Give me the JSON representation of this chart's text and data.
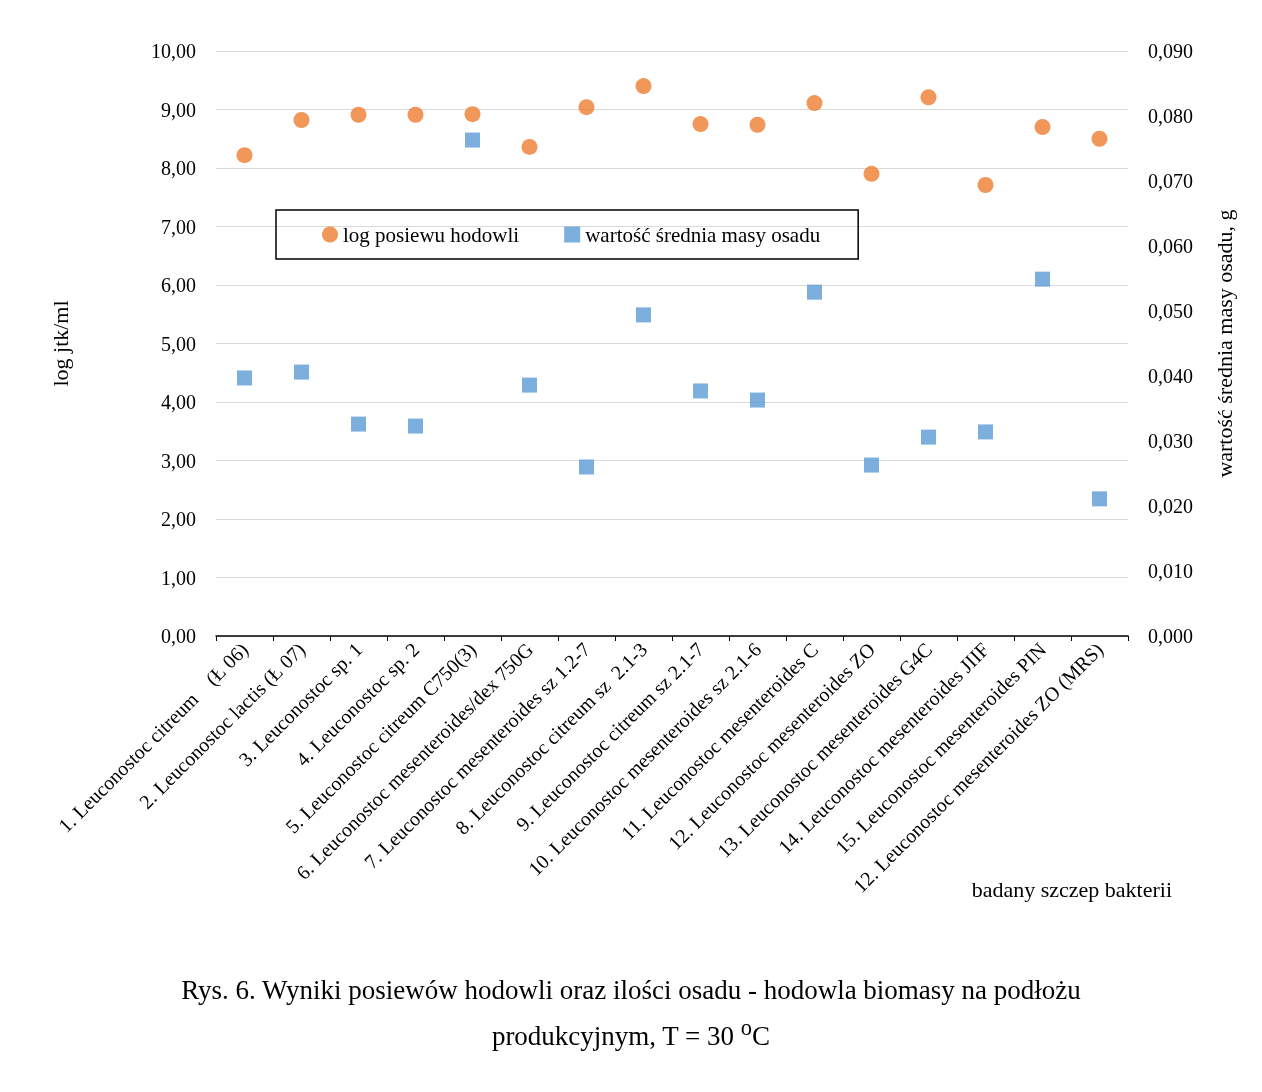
{
  "chart_data": {
    "type": "scatter",
    "title": "Rys. 6. Wyniki posiewów hodowli oraz ilości osadu - hodowla biomasy na podłożu produkcyjnym,  T = 30 $^{o}$C",
    "xlabel": "badany szczep bakterii",
    "ylabel": "log jtk/ml",
    "y2label": "wartość średnia masy osadu, g",
    "categories": [
      "1. Leuconostoc citreum    (Ł 06)",
      "2. Leuconostoc lactis (Ł 07)",
      "3. Leuconostoc sp. 1",
      "4. Leuconostoc sp. 2",
      "5. Leuconostoc citreum C750(3)",
      "6. Leuconostoc mesenteroides/dex 750G",
      "7. Leuconostoc mesenteroides sz 1.2-7",
      "8. Leuconostoc citreum sz  2.1-3",
      "9. Leuconostoc citreum sz 2.1-7",
      "10. Leuconostoc mesenteroides sz 2.1-6",
      "11. Leuconostoc mesenteroides C",
      "12. Leuconostoc mesenteroides ZO",
      "13. Leuconostoc mesenteroides G4C",
      "14. Leuconostoc mesenteroides JIIF",
      "15. Leuconostoc mesenteroides PIN",
      "12. Leuconostoc mesenteroides ZO (MRS)"
    ],
    "series": [
      {
        "name": "log posiewu hodowli",
        "color": "#ed7d31",
        "marker": "circle",
        "values": [
          8.22,
          8.82,
          8.91,
          8.91,
          8.92,
          8.36,
          9.04,
          9.4,
          8.75,
          8.74,
          9.11,
          7.9,
          9.21,
          7.71,
          8.7,
          8.5
        ]
      },
      {
        "name": "wartość średnia masy osadu",
        "color": "#5b9bd5",
        "marker": "square",
        "axis": "y2",
        "values": [
          0.0397,
          0.0406,
          0.0326,
          0.0323,
          0.0763,
          0.0386,
          0.026,
          0.0494,
          0.0377,
          0.0363,
          0.0529,
          0.0263,
          0.0306,
          0.0314,
          0.0549,
          0.0211
        ]
      }
    ],
    "ylim": [
      0,
      10
    ],
    "yticks": [
      {
        "value": 0,
        "label": "0,00"
      },
      {
        "value": 1,
        "label": "1,00"
      },
      {
        "value": 2,
        "label": "2,00"
      },
      {
        "value": 3,
        "label": "3,00"
      },
      {
        "value": 4,
        "label": "4,00"
      },
      {
        "value": 5,
        "label": "5,00"
      },
      {
        "value": 6,
        "label": "6,00"
      },
      {
        "value": 7,
        "label": "7,00"
      },
      {
        "value": 8,
        "label": "8,00"
      },
      {
        "value": 9,
        "label": "9,00"
      },
      {
        "value": 10,
        "label": "10,00"
      }
    ],
    "y2lim": [
      0,
      0.09
    ],
    "y2ticks": [
      {
        "value": 0,
        "label": "0,000"
      },
      {
        "value": 0.01,
        "label": "0,010"
      },
      {
        "value": 0.02,
        "label": "0,020"
      },
      {
        "value": 0.03,
        "label": "0,030"
      },
      {
        "value": 0.04,
        "label": "0,040"
      },
      {
        "value": 0.05,
        "label": "0,050"
      },
      {
        "value": 0.06,
        "label": "0,060"
      },
      {
        "value": 0.07,
        "label": "0,070"
      },
      {
        "value": 0.08,
        "label": "0,080"
      },
      {
        "value": 0.09,
        "label": "0,090"
      }
    ],
    "grid": "y",
    "legend": "top"
  }
}
